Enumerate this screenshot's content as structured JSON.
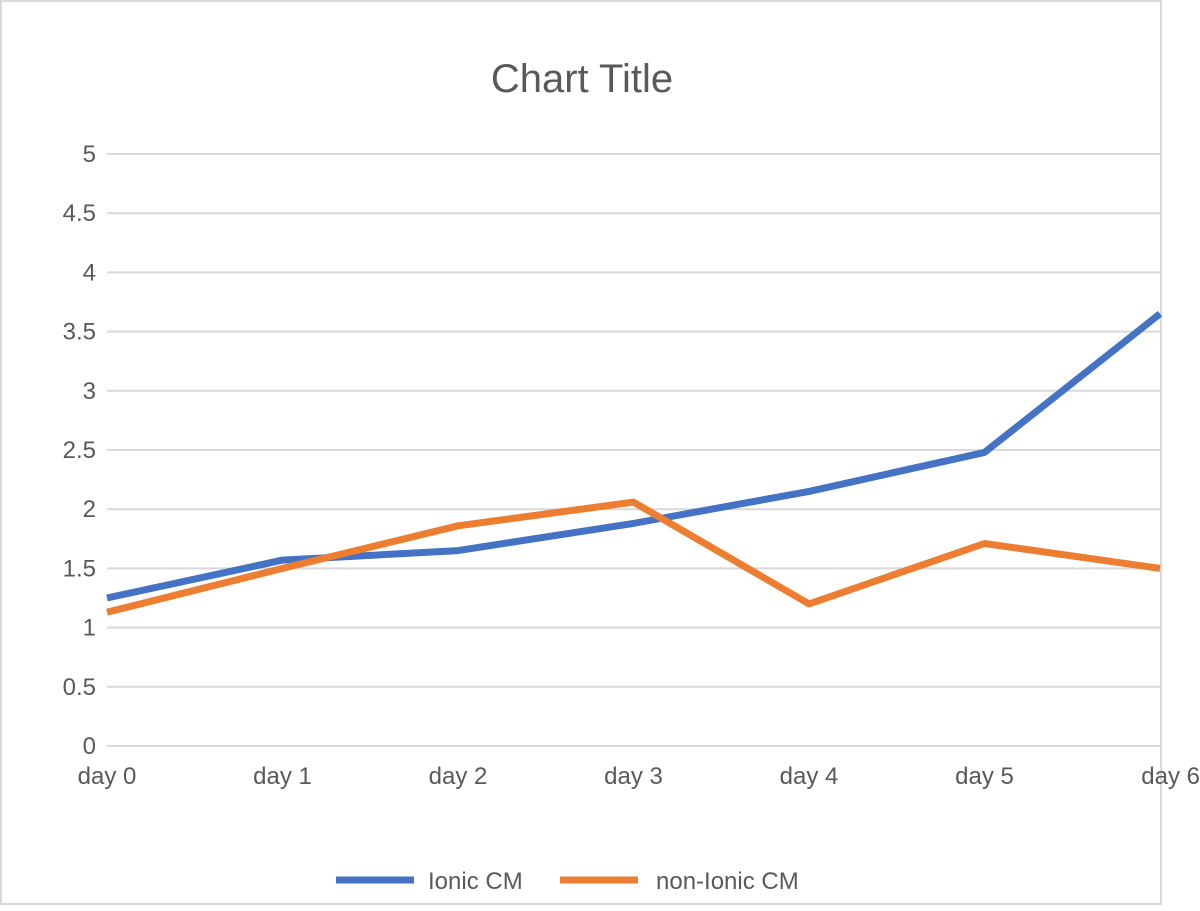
{
  "chart_data": {
    "type": "line",
    "title": "Chart Title",
    "categories": [
      "day 0",
      "day 1",
      "day 2",
      "day 3",
      "day 4",
      "day 5",
      "day 6"
    ],
    "ylim": [
      0,
      5
    ],
    "yticks": [
      0,
      0.5,
      1,
      1.5,
      2,
      2.5,
      3,
      3.5,
      4,
      4.5,
      5
    ],
    "ytick_labels": [
      "0",
      "0.5",
      "1",
      "1.5",
      "2",
      "2.5",
      "3",
      "3.5",
      "4",
      "4.5",
      "5"
    ],
    "grid": true,
    "legend_position": "bottom",
    "series": [
      {
        "name": "Ionic CM",
        "color": "#4472c4",
        "values": [
          1.25,
          1.57,
          1.65,
          1.88,
          2.15,
          2.48,
          3.65
        ]
      },
      {
        "name": "non-Ionic CM",
        "color": "#ed7d31",
        "values": [
          1.13,
          1.5,
          1.86,
          2.06,
          1.2,
          1.71,
          1.5
        ]
      }
    ]
  }
}
